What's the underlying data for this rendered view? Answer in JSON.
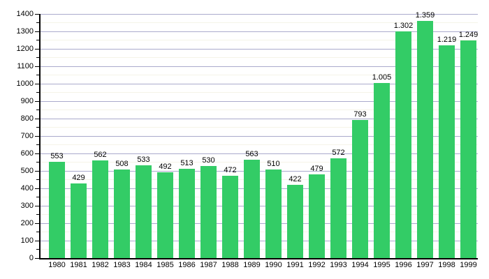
{
  "chart_data": {
    "type": "bar",
    "title": "",
    "xlabel": "",
    "ylabel": "",
    "categories": [
      "1980",
      "1981",
      "1982",
      "1983",
      "1984",
      "1985",
      "1986",
      "1987",
      "1988",
      "1989",
      "1990",
      "1991",
      "1992",
      "1993",
      "1994",
      "1995",
      "1996",
      "1997",
      "1998",
      "1999"
    ],
    "values": [
      553,
      429,
      562,
      508,
      533,
      492,
      513,
      530,
      472,
      563,
      510,
      422,
      479,
      572,
      793,
      1005,
      1302,
      1359,
      1219,
      1249
    ],
    "value_labels": [
      "553",
      "429",
      "562",
      "508",
      "533",
      "492",
      "513",
      "530",
      "472",
      "563",
      "510",
      "422",
      "479",
      "572",
      "793",
      "1.005",
      "1.302",
      "1.359",
      "1.219",
      "1.249"
    ],
    "ylim": [
      0,
      1400
    ],
    "y_major_step": 100,
    "y_minor_step": 50,
    "y_tick_labels": [
      "0",
      "100",
      "200",
      "300",
      "400",
      "500",
      "600",
      "700",
      "800",
      "900",
      "1000",
      "1100",
      "1200",
      "1300",
      "1400"
    ],
    "grid": true,
    "legend": "none",
    "colors": {
      "background": "#FFFFFF",
      "bar_fill": "#33CC66",
      "grid_major": "#AAAACC",
      "grid_minor": "#F5F4E8",
      "axis": "#000000",
      "text": "#000000"
    }
  }
}
